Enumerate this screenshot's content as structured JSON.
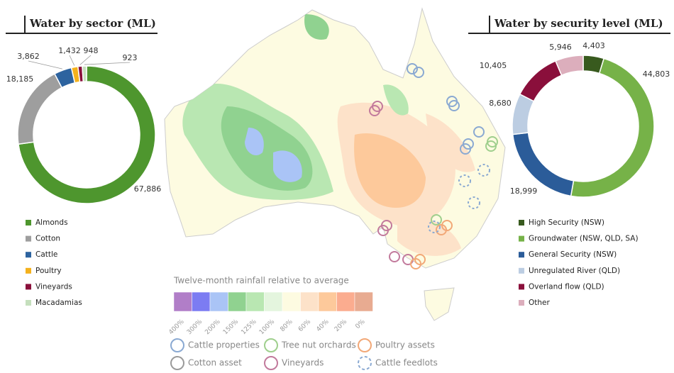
{
  "chart_data": [
    {
      "type": "pie",
      "title": "Water by sector (ML)",
      "categories": [
        "Almonds",
        "Cotton",
        "Cattle",
        "Poultry",
        "Vineyards",
        "Macadamias"
      ],
      "values": [
        67886,
        18185,
        3862,
        1432,
        948,
        923
      ],
      "value_labels": [
        "67,886",
        "18,185",
        "3,862",
        "1,432",
        "948",
        "923"
      ],
      "colors": [
        "#4e962e",
        "#9e9e9e",
        "#2d639f",
        "#f4b11c",
        "#8a0f3b",
        "#c5dfbd"
      ]
    },
    {
      "type": "pie",
      "title": "Water by security level (ML)",
      "categories": [
        "High Security (NSW)",
        "Groundwater (NSW, QLD, SA)",
        "General Security (NSW)",
        "Unregulated River (QLD)",
        "Overland flow (QLD)",
        "Other"
      ],
      "values": [
        4403,
        44803,
        18999,
        8680,
        10405,
        5946
      ],
      "value_labels": [
        "4,403",
        "44,803",
        "18,999",
        "8,680",
        "10,405",
        "5,946"
      ],
      "colors": [
        "#385a1e",
        "#76b248",
        "#2b5c99",
        "#bccde2",
        "#8a0f3b",
        "#dcaebc"
      ]
    }
  ],
  "map": {
    "legend_title": "Twelve-month rainfall relative to average",
    "scale_labels": [
      "400%",
      "300%",
      "200%",
      "150%",
      "125%",
      "100%",
      "80%",
      "60%",
      "40%",
      "20%",
      "0%"
    ],
    "scale_colors": [
      "#b17ec8",
      "#7c7cf2",
      "#aac4f6",
      "#90d290",
      "#b9e7b2",
      "#e4f5de",
      "#fdfbe1",
      "#fde2c9",
      "#fdc99b",
      "#fbac8f",
      "#e8ab91"
    ],
    "markers": [
      {
        "label": "Cattle properties",
        "color": "#8aa9d2",
        "style": "solid"
      },
      {
        "label": "Cotton asset",
        "color": "#9a9a9a",
        "style": "solid"
      },
      {
        "label": "Tree nut orchards",
        "color": "#9fcf8d",
        "style": "solid"
      },
      {
        "label": "Vineyards",
        "color": "#c27a9c",
        "style": "solid"
      },
      {
        "label": "Poultry assets",
        "color": "#f2a877",
        "style": "solid"
      },
      {
        "label": "Cattle feedlots",
        "color": "#8aa9d2",
        "style": "dashed"
      }
    ]
  }
}
